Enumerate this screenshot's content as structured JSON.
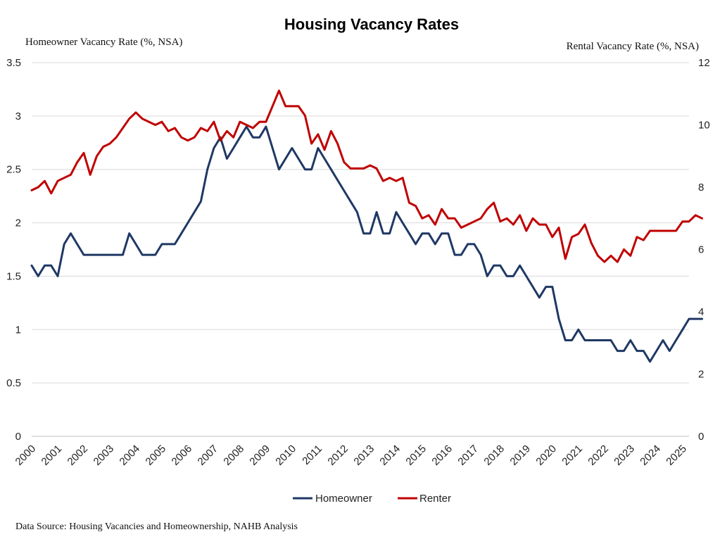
{
  "chart_data": {
    "type": "line",
    "title": "Housing Vacancy Rates",
    "ylabel_left": "Homeowner Vacancy Rate (%, NSA)",
    "ylabel_right": "Rental Vacancy Rate (%, NSA)",
    "source": "Data Source: Housing Vacancies and Homeownership, NAHB Analysis",
    "ylim_left": [
      0,
      3.5
    ],
    "yticks_left": [
      "0",
      "0.5",
      "1",
      "1.5",
      "2",
      "2.5",
      "3",
      "3.5"
    ],
    "ylim_right": [
      0,
      12
    ],
    "yticks_right": [
      "0",
      "2",
      "4",
      "6",
      "8",
      "10",
      "12"
    ],
    "x_tick_labels": [
      "2000",
      "2001",
      "2002",
      "2003",
      "2004",
      "2005",
      "2006",
      "2007",
      "2008",
      "2009",
      "2010",
      "2011",
      "2012",
      "2013",
      "2014",
      "2015",
      "2016",
      "2017",
      "2018",
      "2019",
      "2020",
      "2021",
      "2022",
      "2023",
      "2024",
      "2025"
    ],
    "x_range": [
      2000,
      2025.25
    ],
    "grid": true,
    "legend_position": "bottom-center",
    "series": [
      {
        "name": "Homeowner",
        "axis": "left",
        "color": "#1f3864",
        "start": "2000-Q1",
        "frequency": "quarterly",
        "values": [
          1.6,
          1.5,
          1.6,
          1.6,
          1.5,
          1.8,
          1.9,
          1.8,
          1.7,
          1.7,
          1.7,
          1.7,
          1.7,
          1.7,
          1.7,
          1.9,
          1.8,
          1.7,
          1.7,
          1.7,
          1.8,
          1.8,
          1.8,
          1.9,
          2.0,
          2.1,
          2.2,
          2.5,
          2.7,
          2.8,
          2.6,
          2.7,
          2.8,
          2.9,
          2.8,
          2.8,
          2.9,
          2.7,
          2.5,
          2.6,
          2.7,
          2.6,
          2.5,
          2.5,
          2.7,
          2.6,
          2.5,
          2.4,
          2.3,
          2.2,
          2.1,
          1.9,
          1.9,
          2.1,
          1.9,
          1.9,
          2.1,
          2.0,
          1.9,
          1.8,
          1.9,
          1.9,
          1.8,
          1.9,
          1.9,
          1.7,
          1.7,
          1.8,
          1.8,
          1.7,
          1.5,
          1.6,
          1.6,
          1.5,
          1.5,
          1.6,
          1.5,
          1.4,
          1.3,
          1.4,
          1.4,
          1.1,
          0.9,
          0.9,
          1.0,
          0.9,
          0.9,
          0.9,
          0.9,
          0.9,
          0.8,
          0.8,
          0.9,
          0.8,
          0.8,
          0.7,
          0.8,
          0.9,
          0.8,
          0.9,
          1.0,
          1.1,
          1.1,
          1.1
        ]
      },
      {
        "name": "Renter",
        "axis": "right",
        "color": "#c00000",
        "start": "2000-Q1",
        "frequency": "quarterly",
        "values": [
          7.9,
          8.0,
          8.2,
          7.8,
          8.2,
          8.3,
          8.4,
          8.8,
          9.1,
          8.4,
          9.0,
          9.3,
          9.4,
          9.6,
          9.9,
          10.2,
          10.4,
          10.2,
          10.1,
          10.0,
          10.1,
          9.8,
          9.9,
          9.6,
          9.5,
          9.6,
          9.9,
          9.8,
          10.1,
          9.5,
          9.8,
          9.6,
          10.1,
          10.0,
          9.9,
          10.1,
          10.1,
          10.6,
          11.1,
          10.6,
          10.6,
          10.6,
          10.3,
          9.4,
          9.7,
          9.2,
          9.8,
          9.4,
          8.8,
          8.6,
          8.6,
          8.6,
          8.7,
          8.6,
          8.2,
          8.3,
          8.2,
          8.3,
          7.5,
          7.4,
          7.0,
          7.1,
          6.8,
          7.3,
          7.0,
          7.0,
          6.7,
          6.8,
          6.9,
          7.0,
          7.3,
          7.5,
          6.9,
          7.0,
          6.8,
          7.1,
          6.6,
          7.0,
          6.8,
          6.8,
          6.4,
          6.7,
          5.7,
          6.4,
          6.5,
          6.8,
          6.2,
          5.8,
          5.6,
          5.8,
          5.6,
          6.0,
          5.8,
          6.4,
          6.3,
          6.6,
          6.6,
          6.6,
          6.6,
          6.6,
          6.9,
          6.9,
          7.1,
          7.0
        ]
      }
    ]
  }
}
